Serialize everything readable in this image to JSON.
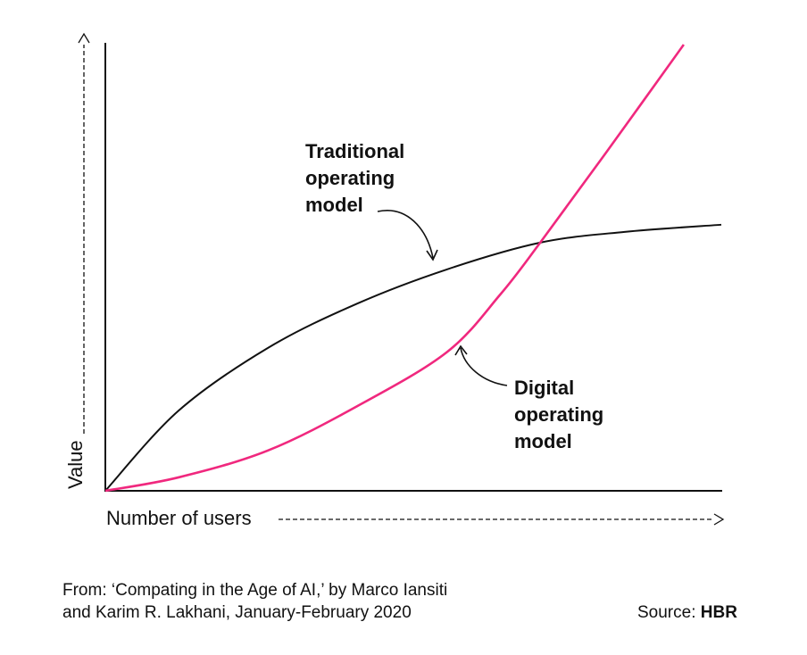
{
  "chart_data": {
    "type": "line",
    "title": "",
    "xlabel": "Number of users",
    "ylabel": "Value",
    "xlim": [
      0,
      100
    ],
    "ylim": [
      0,
      100
    ],
    "grid": false,
    "ticks": false,
    "series": [
      {
        "name": "Traditional operating model",
        "color": "#111111",
        "x": [
          0,
          11.9,
          26.4,
          40.9,
          55.4,
          70.6,
          84.3,
          100
        ],
        "y": [
          0,
          17.9,
          31.9,
          41.8,
          49.4,
          55.4,
          57.8,
          59.4
        ]
      },
      {
        "name": "Digital operating model",
        "color": "#F0287E",
        "x": [
          0,
          11.9,
          26.4,
          40.9,
          55.4,
          64.1,
          70.6,
          81.4,
          93.9
        ],
        "y": [
          0,
          3.0,
          9.0,
          18.9,
          30.9,
          43.8,
          55.4,
          75.7,
          99.6
        ]
      }
    ],
    "annotations": {
      "traditional": [
        "Traditional",
        "operating",
        "model"
      ],
      "digital": [
        "Digital",
        "operating",
        "model"
      ]
    }
  },
  "footer": {
    "citation_line1": "From: ‘Compating in the Age of AI,’ by Marco Iansiti",
    "citation_line2": "and Karim R. Lakhani, January-February 2020",
    "source_label": "Source: ",
    "source_name": "HBR"
  }
}
